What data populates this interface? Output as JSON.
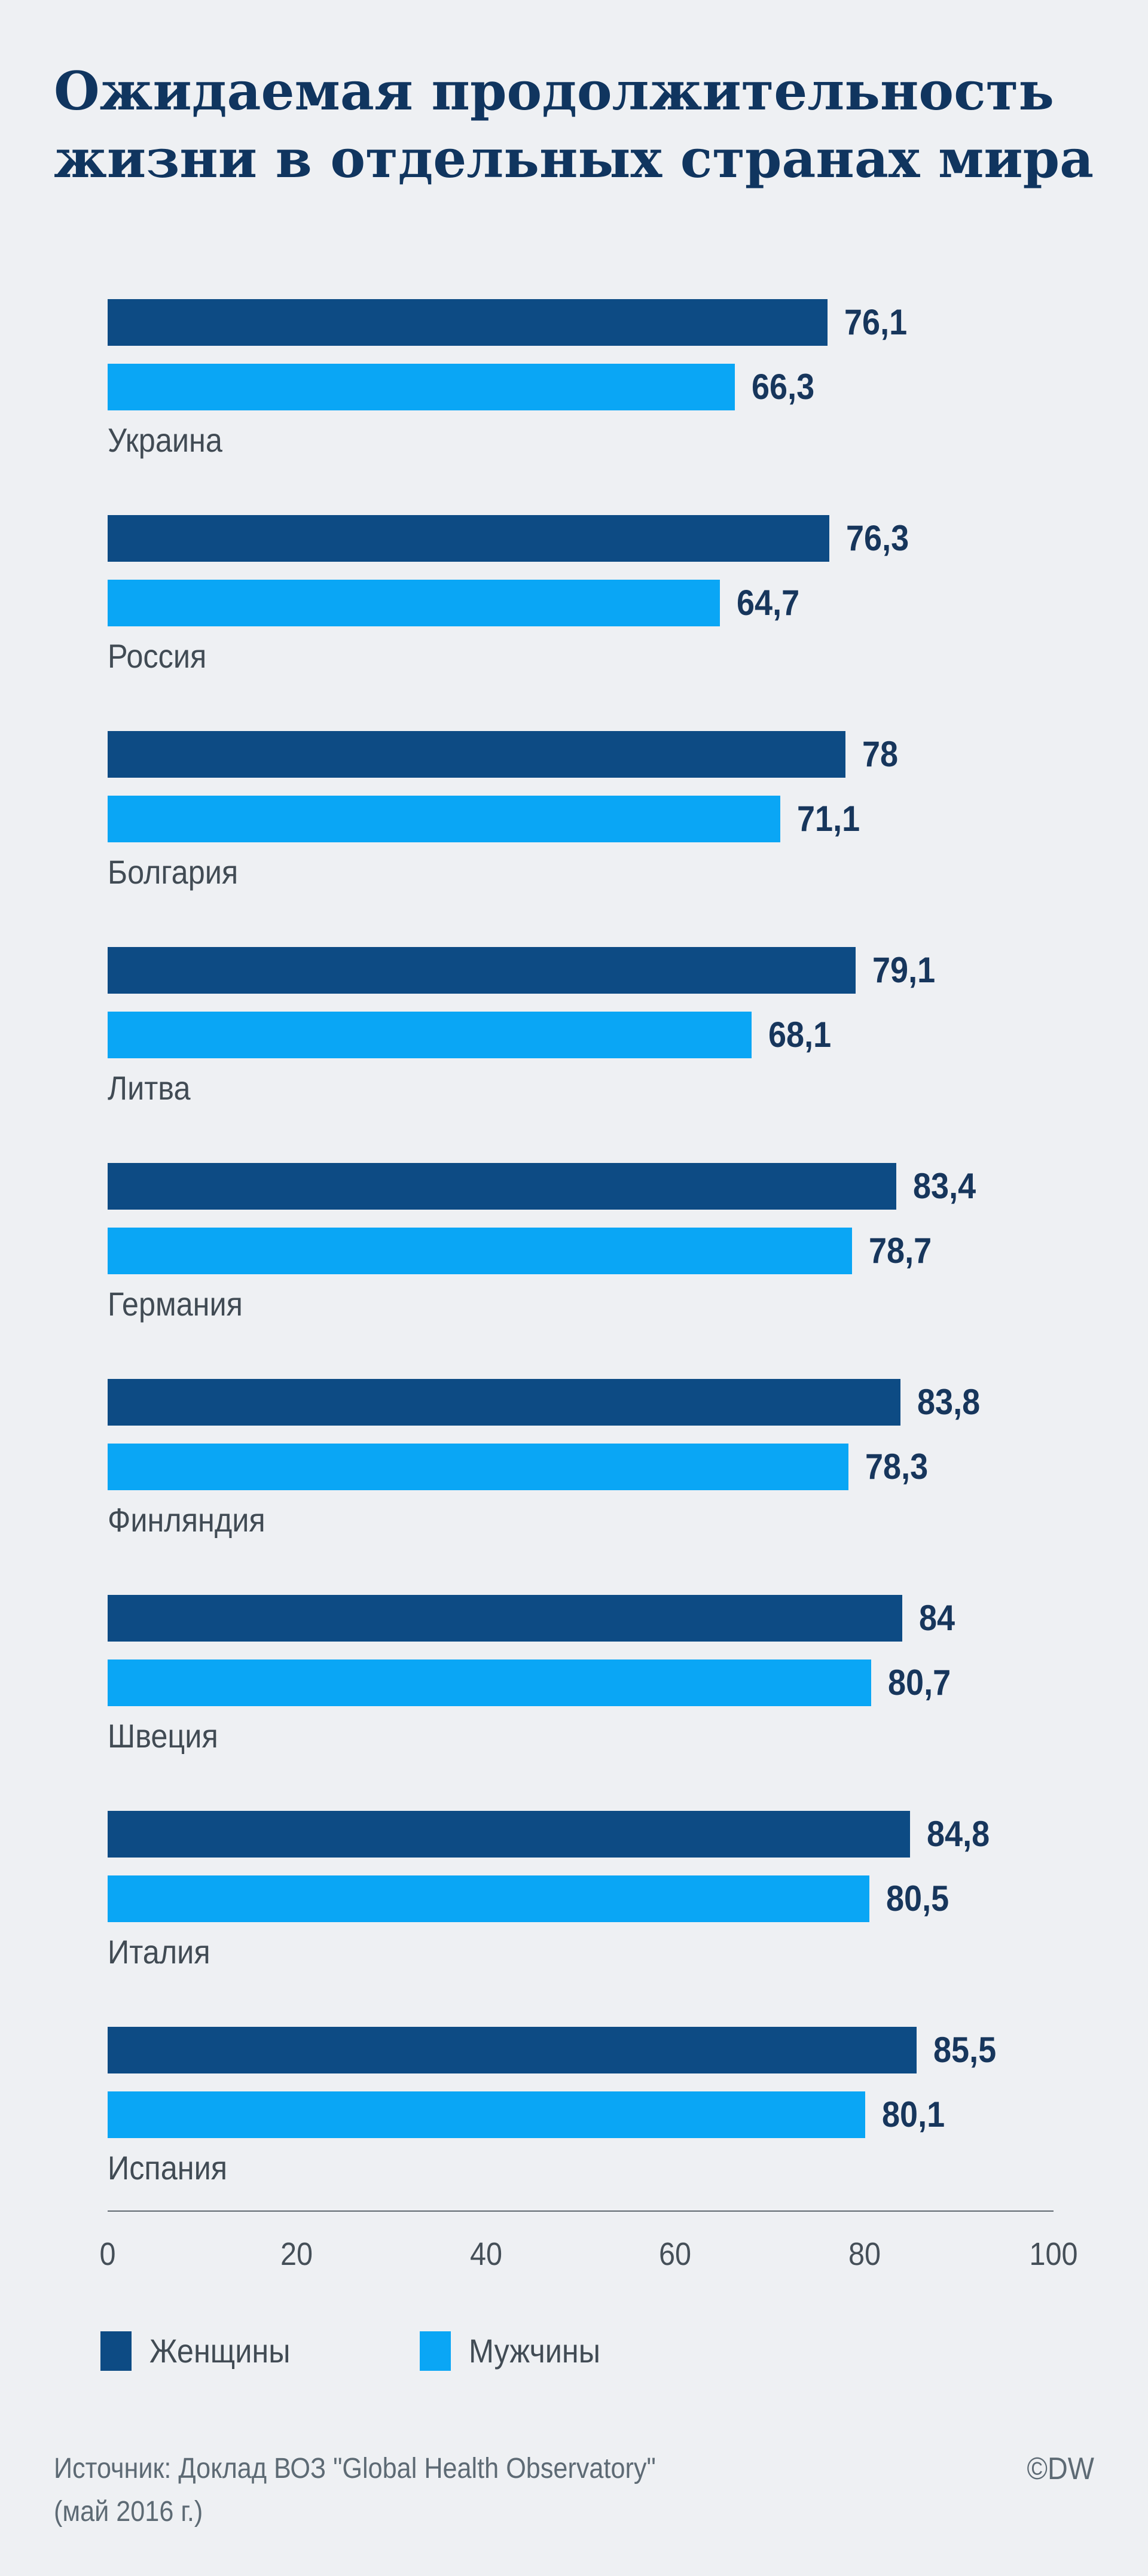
{
  "header": {
    "title_lines": [
      "Ожидаемая продолжительность",
      "жизни в отдельных странах мира"
    ]
  },
  "colors": {
    "background": "#eef0f3",
    "title": "#10355f",
    "women_bar": "#0d4b84",
    "men_bar": "#0aa6f5",
    "value_label": "#17365c",
    "country_label": "#414b54",
    "axis": "#5f6870"
  },
  "chart_data": {
    "type": "bar",
    "orientation": "horizontal",
    "title": "Ожидаемая продолжительность жизни в отдельных странах мира",
    "categories": [
      "Украина",
      "Россия",
      "Болгария",
      "Литва",
      "Германия",
      "Финляндия",
      "Швеция",
      "Италия",
      "Испания"
    ],
    "series": [
      {
        "name": "Женщины",
        "color": "#0d4b84",
        "values": [
          76.1,
          76.3,
          78,
          79.1,
          83.4,
          83.8,
          84,
          84.8,
          85.5
        ],
        "labels": [
          "76,1",
          "76,3",
          "78",
          "79,1",
          "83,4",
          "83,8",
          "84",
          "84,8",
          "85,5"
        ]
      },
      {
        "name": "Мужчины",
        "color": "#0aa6f5",
        "values": [
          66.3,
          64.7,
          71.1,
          68.1,
          78.7,
          78.3,
          80.7,
          80.5,
          80.1
        ],
        "labels": [
          "66,3",
          "64,7",
          "71,1",
          "68,1",
          "78,7",
          "78,3",
          "80,7",
          "80,5",
          "80,1"
        ]
      }
    ],
    "xlim": [
      0,
      100
    ],
    "x_ticks": [
      0,
      20,
      40,
      60,
      80,
      100
    ],
    "grid": false,
    "legend_position": "bottom",
    "value_labels_shown": true
  },
  "footer": {
    "source_line1": "Источник: Доклад ВОЗ \"Global Health Observatory\"",
    "source_line2": "(май 2016 г.)",
    "copyright": "©DW"
  }
}
